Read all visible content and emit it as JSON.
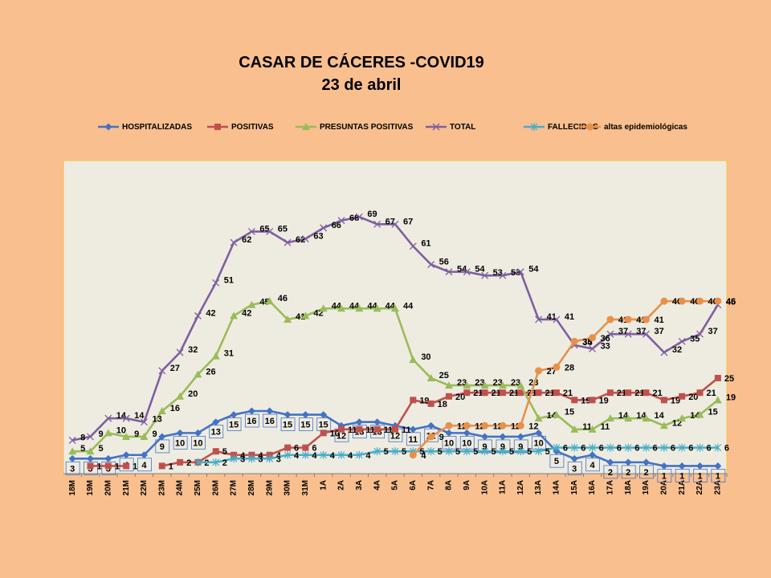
{
  "title": {
    "line1": "CASAR DE CÁCERES -COVID19",
    "line2": "23 de abril"
  },
  "chart_data": {
    "type": "line",
    "categories": [
      "18M",
      "19M",
      "20M",
      "21M",
      "22M",
      "23M",
      "24M",
      "25M",
      "26M",
      "27M",
      "28M",
      "29M",
      "30M",
      "31M",
      "1A",
      "2A",
      "3A",
      "4A",
      "5A",
      "6A",
      "7A",
      "8A",
      "9A",
      "10A",
      "11A",
      "12A",
      "13A",
      "14A",
      "15A",
      "16A",
      "17A",
      "18A",
      "19A",
      "20A",
      "21A",
      "22A",
      "23A"
    ],
    "ylim": [
      0,
      80
    ],
    "series": [
      {
        "name": "HOSPITALIZADAS",
        "color": "#4472C4",
        "marker": "diamond",
        "values": [
          3,
          3,
          3,
          4,
          4,
          9,
          10,
          10,
          13,
          15,
          16,
          16,
          15,
          15,
          15,
          12,
          13,
          13,
          12,
          11,
          12,
          10,
          10,
          9,
          9,
          9,
          10,
          5,
          3,
          4,
          2,
          2,
          2,
          1,
          1,
          1,
          1
        ],
        "labels": [
          "3",
          "3",
          "3",
          "4",
          "4",
          "9",
          "10",
          "10",
          "13",
          "15",
          "16",
          "16",
          "15",
          "15",
          "15",
          "12",
          "13",
          "13",
          "12",
          "11",
          "12",
          "10",
          "10",
          "9",
          "9",
          "9",
          "10",
          "5",
          "3",
          "4",
          "2",
          "2",
          "2",
          "1",
          "1",
          "1",
          "1"
        ],
        "boxed": true
      },
      {
        "name": "POSITIVAS",
        "color": "#C0504D",
        "marker": "square",
        "values": [
          null,
          1,
          1,
          1,
          null,
          1,
          2,
          2,
          5,
          4,
          4,
          4,
          6,
          6,
          10,
          11,
          11,
          11,
          11,
          19,
          18,
          20,
          21,
          21,
          21,
          21,
          21,
          21,
          19,
          19,
          21,
          21,
          21,
          19,
          20,
          21,
          25
        ],
        "labels": [
          null,
          "1",
          "1",
          "1",
          null,
          "1",
          "2",
          "2",
          "5",
          "4",
          "4",
          "4",
          "6",
          "6",
          "10",
          "11",
          "11",
          "11",
          "11",
          "19",
          "18",
          "20",
          "21",
          "21",
          "21",
          "21",
          "21",
          "21",
          "19",
          "19",
          "21",
          "21",
          "21",
          "19",
          "20",
          "21",
          "25"
        ]
      },
      {
        "name": "PRESUNTAS POSITIVAS",
        "color": "#9BBB59",
        "marker": "triangle",
        "values": [
          5,
          5,
          10,
          9,
          9,
          16,
          20,
          26,
          31,
          42,
          45,
          46,
          41,
          42,
          44,
          44,
          44,
          44,
          44,
          30,
          25,
          23,
          23,
          23,
          23,
          23,
          14,
          15,
          11,
          11,
          14,
          14,
          14,
          12,
          14,
          15,
          19
        ],
        "labels": [
          "5",
          "5",
          "10",
          "9",
          "9",
          "16",
          "20",
          "26",
          "31",
          "42",
          "45",
          "46",
          "41",
          "42",
          "44",
          "44",
          "44",
          "44",
          "44",
          "30",
          "25",
          "23",
          "23",
          "23",
          "23",
          "23",
          "14",
          "15",
          "11",
          "11",
          "14",
          "14",
          "14",
          "12",
          "14",
          "15",
          "19"
        ]
      },
      {
        "name": "TOTAL",
        "color": "#7F5F9F",
        "marker": "x",
        "values": [
          8,
          9,
          14,
          14,
          13,
          27,
          32,
          42,
          51,
          62,
          65,
          65,
          62,
          63,
          66,
          68,
          69,
          67,
          67,
          61,
          56,
          54,
          54,
          53,
          53,
          54,
          41,
          41,
          34,
          33,
          37,
          37,
          37,
          32,
          35,
          37,
          45
        ],
        "labels": [
          "8",
          "9",
          "14",
          "14",
          "13",
          "27",
          "32",
          "42",
          "51",
          "62",
          "65",
          "65",
          "62",
          "63",
          "66",
          "68",
          "69",
          "67",
          "67",
          "61",
          "56",
          "54",
          "54",
          "53",
          "53",
          "54",
          "41",
          "41",
          "34",
          "33",
          "37",
          "37",
          "37",
          "32",
          "35",
          "37",
          "45"
        ]
      },
      {
        "name": "FALLECIDAS",
        "color": "#4BACC6",
        "marker": "asterisk",
        "values": [
          null,
          null,
          null,
          null,
          null,
          null,
          null,
          2,
          2,
          3,
          3,
          3,
          4,
          4,
          4,
          4,
          4,
          5,
          5,
          5,
          5,
          5,
          5,
          5,
          5,
          5,
          5,
          6,
          6,
          6,
          6,
          6,
          6,
          6,
          6,
          6,
          6
        ],
        "labels": [
          null,
          null,
          null,
          null,
          null,
          null,
          null,
          null,
          "2",
          "3",
          "3",
          "3",
          "4",
          "4",
          "4",
          "4",
          "4",
          "5",
          "5",
          "5",
          "5",
          "5",
          "5",
          "5",
          "5",
          "5",
          "5",
          "6",
          "6",
          "6",
          "6",
          "6",
          "6",
          "6",
          "6",
          "6",
          "6"
        ]
      },
      {
        "name": "altas epidemiológicas",
        "color": "#E8904A",
        "marker": "circle",
        "values": [
          null,
          null,
          null,
          null,
          null,
          null,
          null,
          null,
          null,
          null,
          null,
          null,
          null,
          null,
          null,
          null,
          null,
          null,
          null,
          4,
          9,
          12,
          12,
          12,
          12,
          12,
          27,
          28,
          35,
          36,
          41,
          41,
          41,
          46,
          46,
          46,
          46
        ],
        "labels": [
          null,
          null,
          null,
          null,
          null,
          null,
          null,
          null,
          null,
          null,
          null,
          null,
          null,
          null,
          null,
          null,
          null,
          null,
          null,
          "4",
          "9",
          "12",
          "12",
          "12",
          "12",
          "12",
          "27",
          "28",
          "35",
          "36",
          "41",
          "41",
          "41",
          "46",
          "46",
          "46",
          "46"
        ]
      }
    ],
    "grid": false,
    "legend_position": "top",
    "plot_background": "#EEECE1",
    "page_background": "#F9BF8F"
  }
}
